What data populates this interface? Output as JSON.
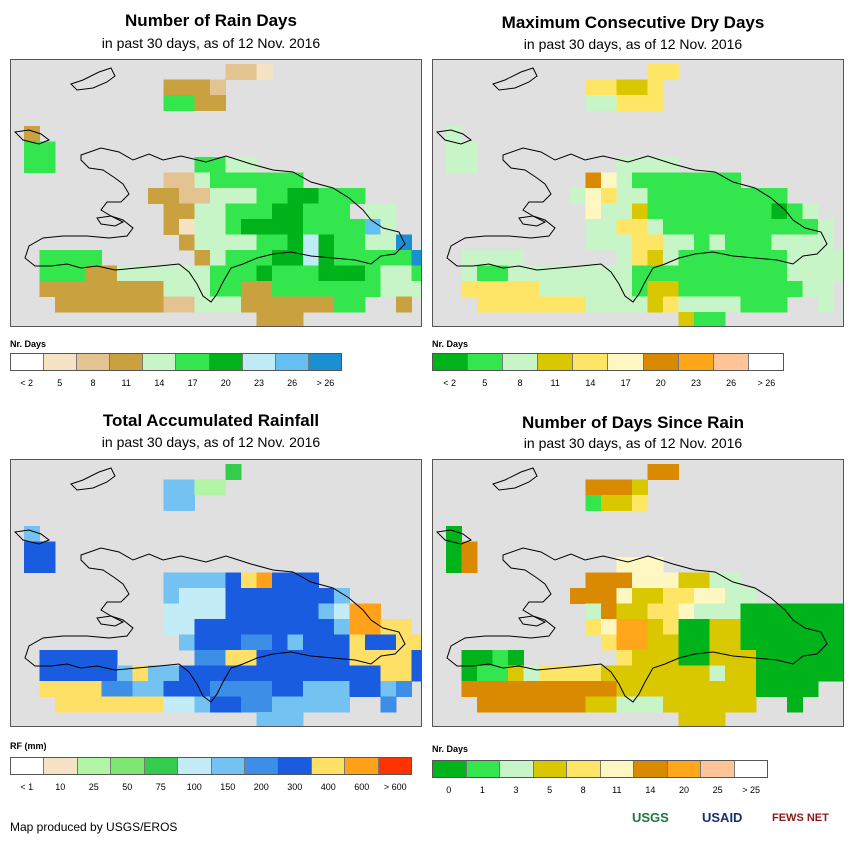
{
  "panels": [
    {
      "id": "rain-days",
      "title": "Number of Rain Days",
      "subtitle": "in past 30 days, as of 12 Nov. 2016",
      "legend_title": "Nr. Days",
      "legend_colors": [
        "#ffffff",
        "#f5e3c3",
        "#e3c38f",
        "#c9a23f",
        "#c8f5c8",
        "#33e64d",
        "#00b31a",
        "#bfebf7",
        "#66bff2",
        "#1a8fd1"
      ],
      "legend_labels": [
        "< 2",
        "5",
        "8",
        "11",
        "14",
        "17",
        "20",
        "23",
        "26",
        "> 26"
      ],
      "grid_colors": {
        "a": "#c9a23f",
        "b": "#e3c38f",
        "c": "#c8f5c8",
        "d": "#33e64d",
        "e": "#00b31a",
        "f": "#bfebf7",
        "g": "#66bff2",
        "h": "#1a8fd1",
        "i": "#f5e3c3"
      },
      "grid": [
        "...............bbi......",
        "...........aaab.........",
        "...........ddaa.........",
        "........................",
        "..a.....................",
        "..dd....................",
        "..dd.........ddcc.......",
        "...........bbcdddddd....",
        "..........aabbcccddeeddd....",
        "...........aaccdddeeddd.cc..",
        "...........aiccdeeeeddddgc..",
        "............accccddefeddcch..",
        "...dddd......acdddeefedddddhh",
        "...dddaaccccccdddedddeeedccd.",
        "...aaaaaaaacccddaadddddddccc.",
        "....aaaaaaabbcccaaaaaadd..a..",
        ".................aaa.........",
        ".................ba.........."
      ]
    },
    {
      "id": "max-dry-days",
      "title": "Maximum Consecutive Dry Days",
      "subtitle": "in past 30 days, as of 12 Nov. 2016",
      "legend_title": "Nr. Days",
      "legend_colors": [
        "#00b31a",
        "#33e64d",
        "#c8f5c8",
        "#d9c800",
        "#ffe566",
        "#fff7c2",
        "#d98a00",
        "#ffa61a",
        "#ffc599",
        "#ffffff"
      ],
      "legend_labels": [
        "< 2",
        "5",
        "8",
        "11",
        "14",
        "17",
        "20",
        "23",
        "26",
        "> 26"
      ],
      "grid_colors": {
        "a": "#00b31a",
        "b": "#33e64d",
        "c": "#c8f5c8",
        "d": "#d9c800",
        "e": "#ffe566",
        "f": "#fff7c2",
        "g": "#d98a00",
        "h": "#ffa61a",
        "i": "#ffc599"
      },
      "grid": [
        "...............ee.......",
        "...........eedde.........",
        "...........cceee.........",
        "........................",
        "..c.....................",
        "..cc....................",
        "..cc.........cccc.......",
        "...........gfcbbbbbbb....",
        "..........cfeccbbbbbbbbb....",
        "...........fccdbbbbbbbbabc..",
        "...........cceecbbbbbbbbbbc.",
        "...........ccceeccbcbbbcccc..",
        "...cccc......cedcbbbbbbbcccc",
        "...cbbccccccccbbbbbbbbbbcccc.",
        "...eeeeeccccccbddbbbbbbbbcc..",
        "....eeeeeeeccccdeccccbbb..c..",
        ".................dbb.........",
        ".................dd.........."
      ]
    },
    {
      "id": "total-rainfall",
      "title": "Total Accumulated Rainfall",
      "subtitle": "in past 30 days, as of 12 Nov. 2016",
      "legend_title": "RF (mm)",
      "legend_colors": [
        "#ffffff",
        "#f5e3c3",
        "#b3f5a6",
        "#80e673",
        "#33cc4d",
        "#c4ecf7",
        "#73c2f2",
        "#3d8ee6",
        "#1a5ce0",
        "#ffe066",
        "#ffa21a",
        "#ff3300"
      ],
      "legend_labels": [
        "< 1",
        "10",
        "25",
        "50",
        "75",
        "100",
        "150",
        "200",
        "300",
        "400",
        "600",
        "> 600"
      ],
      "grid_colors": {
        "a": "#f5e3c3",
        "b": "#b3f5a6",
        "c": "#80e673",
        "d": "#33cc4d",
        "e": "#c4ecf7",
        "f": "#73c2f2",
        "g": "#3d8ee6",
        "h": "#1a5ce0",
        "i": "#ffe066",
        "j": "#ffa21a",
        "k": "#ff3300"
      },
      "grid": [
        "...............d.........",
        "...........ffbb..........",
        "...........ff............",
        "..........................",
        "..f.......................",
        "..hh......................",
        "..hh......................",
        "...........ffffhijhhh.......",
        "...........feeehhhhhhhf.....",
        "...........eeeehhhhhhfejj...",
        "...........eehhhhhhhhhfjjii.",
        "............fhhhgghfhhhihhii.",
        "...hhhhh.....ggiihhhhhhiiiih.",
        "...hhhhhfiffhhhhhhhhhhhhhiihh",
        "...iiiiggffhhhgggghhfffhhfg..",
        "....iiiiiiieefhhggfffff..g..",
        ".................fff.........",
        ".................ef.........."
      ]
    },
    {
      "id": "days-since-rain",
      "title": "Number of Days Since Rain",
      "subtitle": "in past 30 days, as of 12 Nov. 2016",
      "legend_title": "Nr. Days",
      "legend_colors": [
        "#00b31a",
        "#33e64d",
        "#c8f5c8",
        "#d9c800",
        "#ffe566",
        "#fff7c2",
        "#d98a00",
        "#ffa61a",
        "#ffc599",
        "#ffffff"
      ],
      "legend_labels": [
        "0",
        "1",
        "3",
        "5",
        "8",
        "11",
        "14",
        "20",
        "25",
        "> 25"
      ],
      "grid_colors": {
        "a": "#00b31a",
        "b": "#33e64d",
        "c": "#c8f5c8",
        "d": "#d9c800",
        "e": "#ffe566",
        "f": "#fff7c2",
        "g": "#d98a00",
        "h": "#ffa61a",
        "i": "#ffc599"
      },
      "grid": [
        "...............gg.......",
        "...........gggd..........",
        "...........bdde..........",
        "........................",
        "..a.....................",
        "..ag....................",
        "..ag.........fff........",
        "...........gggfffddcc.......",
        "..........gggfddeeffcc......",
        "...........cgddeefcccaaaaaaa..",
        "...........efhhdeaaddaaaaaaa..",
        "............ehhddaaddaaaaaaa..",
        "...aaba......edddaadddaaaaaaaa",
        "...abbdceeeedddddddcddaaaaaa.",
        "...ggggggggggdddddddddaaaa...",
        "....gggggggddcccdddddd..a...",
        ".................ddd.........",
        ".................dd.........."
      ]
    }
  ],
  "credit": "Map produced by USGS/EROS",
  "logos": [
    "USGS",
    "USAID",
    "FEWS NET"
  ]
}
